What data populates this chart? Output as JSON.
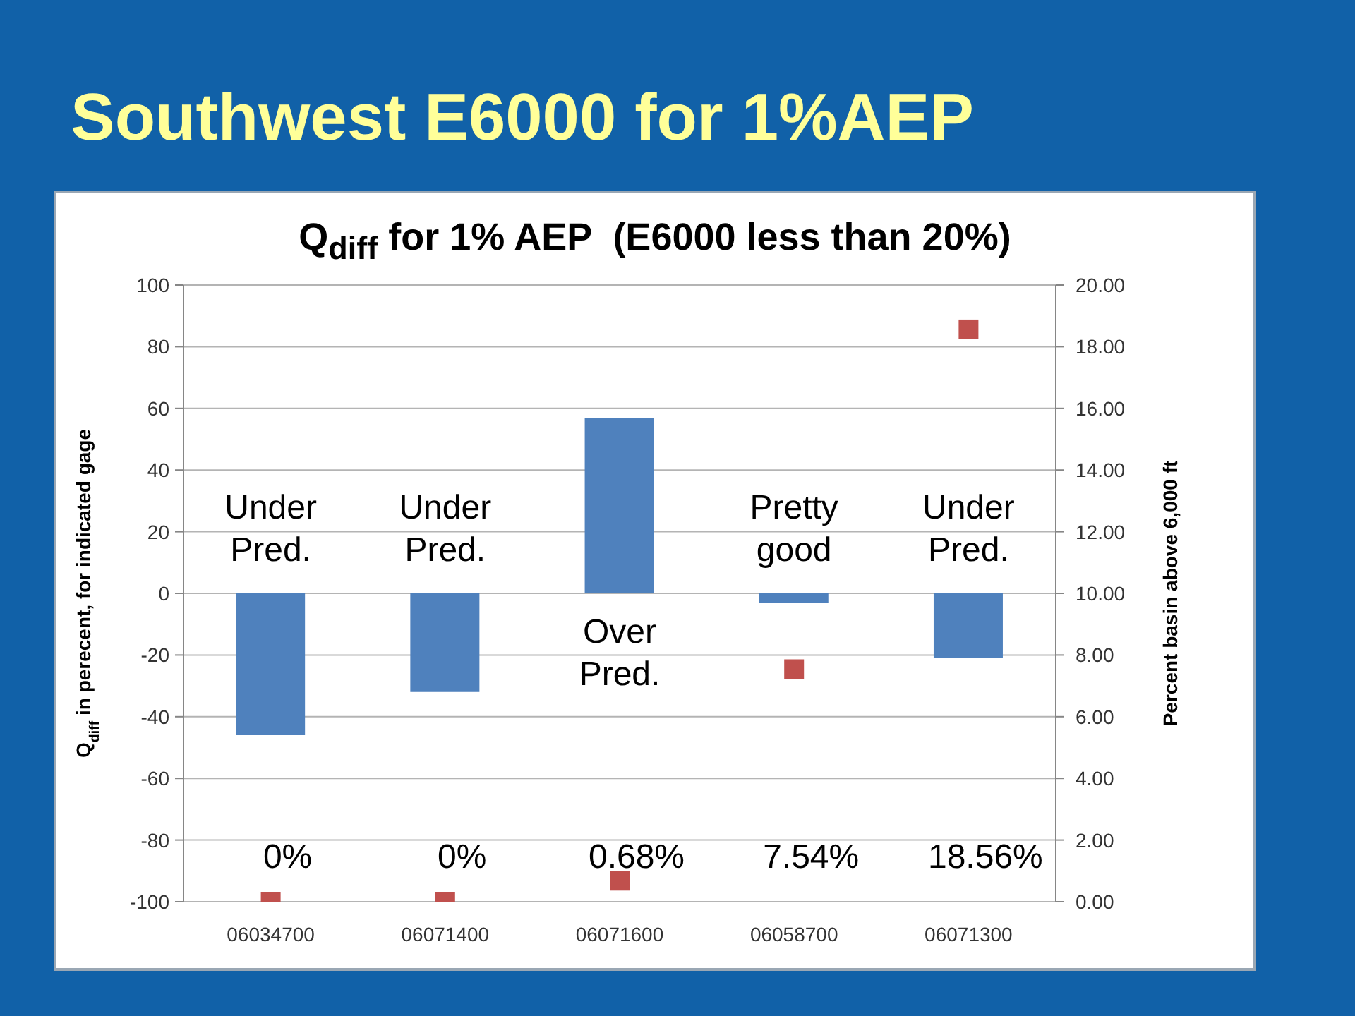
{
  "chart_data": {
    "type": "bar",
    "title": "Southwest E6000 for 1%AEP",
    "subtitle": "Q$_{diff}$ for 1% AEP  (E6000 less than 20%)",
    "ylabel": "Q$_{diff}$ in perecent, for indicated gage",
    "y2label": "Percent basin above 6,000 ft",
    "categories": [
      "06034700",
      "06071400",
      "06071600",
      "06058700",
      "06071300"
    ],
    "series": [
      {
        "color": "#4f81bd",
        "values": [
          -46,
          -32,
          57,
          -3,
          -21
        ]
      },
      {
        "type": "scatter",
        "axis": "y2",
        "color": "#c0504d",
        "values": [
          0,
          0,
          0.68,
          7.54,
          18.56
        ]
      }
    ],
    "ylim": [
      -100,
      100
    ],
    "yticks": [
      -100,
      -80,
      -60,
      -40,
      -20,
      0,
      20,
      40,
      60,
      80,
      100
    ],
    "y2lim": [
      0,
      20
    ],
    "y2ticks": [
      {
        "value": 0,
        "label": "0.00"
      },
      {
        "value": 2,
        "label": "2.00"
      },
      {
        "value": 4,
        "label": "4.00"
      },
      {
        "value": 6,
        "label": "6.00"
      },
      {
        "value": 8,
        "label": "8.00"
      },
      {
        "value": 10,
        "label": "10.00"
      },
      {
        "value": 12,
        "label": "12.00"
      },
      {
        "value": 14,
        "label": "14.00"
      },
      {
        "value": 16,
        "label": "16.00"
      },
      {
        "value": 18,
        "label": "18.00"
      },
      {
        "value": 20,
        "label": "20.00"
      }
    ],
    "grid": "y",
    "marker": "square",
    "annotations": [
      "Under Pred.",
      "Under Pred.",
      "Over Pred.",
      "Pretty good",
      "Under Pred.",
      "0%",
      "0%",
      "0.68%",
      "7.54%",
      "18.56%"
    ]
  }
}
